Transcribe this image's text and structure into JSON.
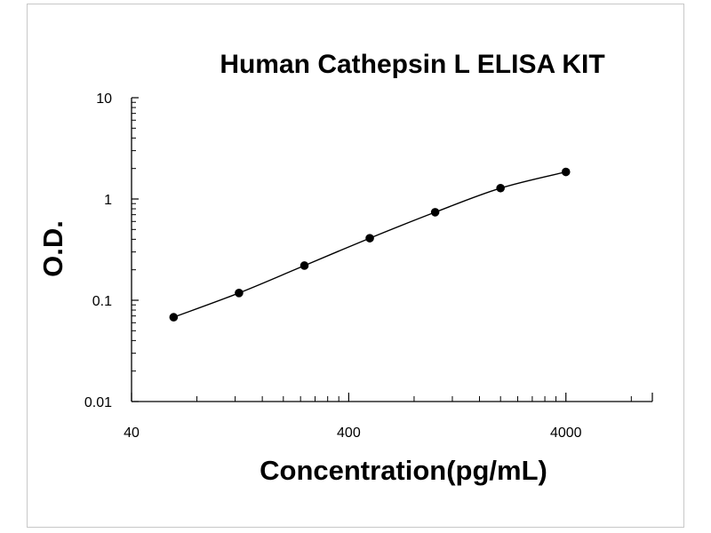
{
  "chart_data": {
    "type": "scatter",
    "title": "Human Cathepsin L ELISA KIT",
    "xlabel": "Concentration(pg/mL)",
    "ylabel": "O.D.",
    "x_scale": "log",
    "y_scale": "log",
    "xlim": [
      40,
      10000
    ],
    "ylim": [
      0.01,
      10
    ],
    "x_tick_labels": [
      "40",
      "400",
      "4000"
    ],
    "x_tick_values": [
      40,
      400,
      4000
    ],
    "y_tick_labels": [
      "0.01",
      "0.1",
      "1",
      "10"
    ],
    "y_tick_values": [
      0.01,
      0.1,
      1,
      10
    ],
    "grid": false,
    "fit_line": true,
    "series": [
      {
        "x": [
          62.5,
          125,
          250,
          500,
          1000,
          2000,
          4000
        ],
        "y": [
          0.068,
          0.118,
          0.22,
          0.41,
          0.74,
          1.28,
          1.85
        ]
      }
    ]
  }
}
